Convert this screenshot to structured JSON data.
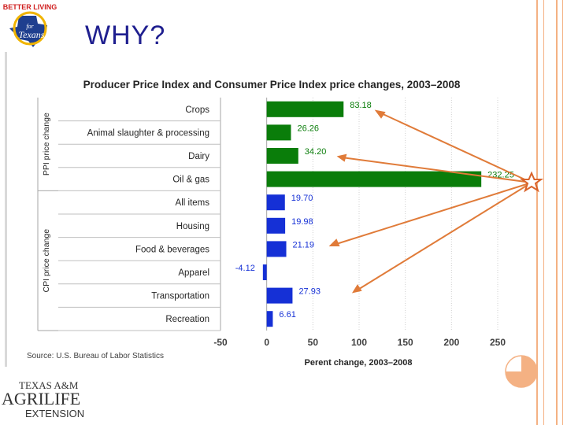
{
  "slide": {
    "title": "WHY?",
    "logo_top": {
      "line1": "BETTER LIVING",
      "line2": "for",
      "line3": "Texans"
    },
    "logo_bottom": {
      "line1": "TEXAS A&M",
      "line2": "AGRILIFE",
      "line3": "EXTENSION"
    }
  },
  "chart_data": {
    "type": "bar",
    "orientation": "horizontal",
    "title": "Producer Price Index  and Consumer Price Index price changes, 2003–2008",
    "xlabel": "Perent change, 2003–2008",
    "xlim": [
      -50,
      250
    ],
    "xticks": [
      "-50",
      "0",
      "50",
      "100",
      "150",
      "200",
      "250"
    ],
    "groups": [
      {
        "name": "PPI price change",
        "color": "#0a7d0a",
        "categories": [
          "Crops",
          "Animal slaughter & processing",
          "Dairy",
          "Oil & gas"
        ],
        "values": [
          83.18,
          26.26,
          34.2,
          232.25
        ],
        "labels": [
          "83.18",
          "26.26",
          "34.20",
          "232.25"
        ]
      },
      {
        "name": "CPI price change",
        "color": "#1530d6",
        "categories": [
          "All items",
          "Housing",
          "Food & beverages",
          "Apparel",
          "Transportation",
          "Recreation"
        ],
        "values": [
          19.7,
          19.98,
          21.19,
          -4.12,
          27.93,
          6.61
        ],
        "labels": [
          "19.70",
          "19.98",
          "21.19",
          "-4.12",
          "27.93",
          "6.61"
        ]
      }
    ],
    "source": "Source: U.S. Bureau of Labor Statistics"
  },
  "colors": {
    "title": "#1f1f8f",
    "arrow": "#e07b39",
    "star": "#e07b39",
    "decor": "#f4b183"
  }
}
